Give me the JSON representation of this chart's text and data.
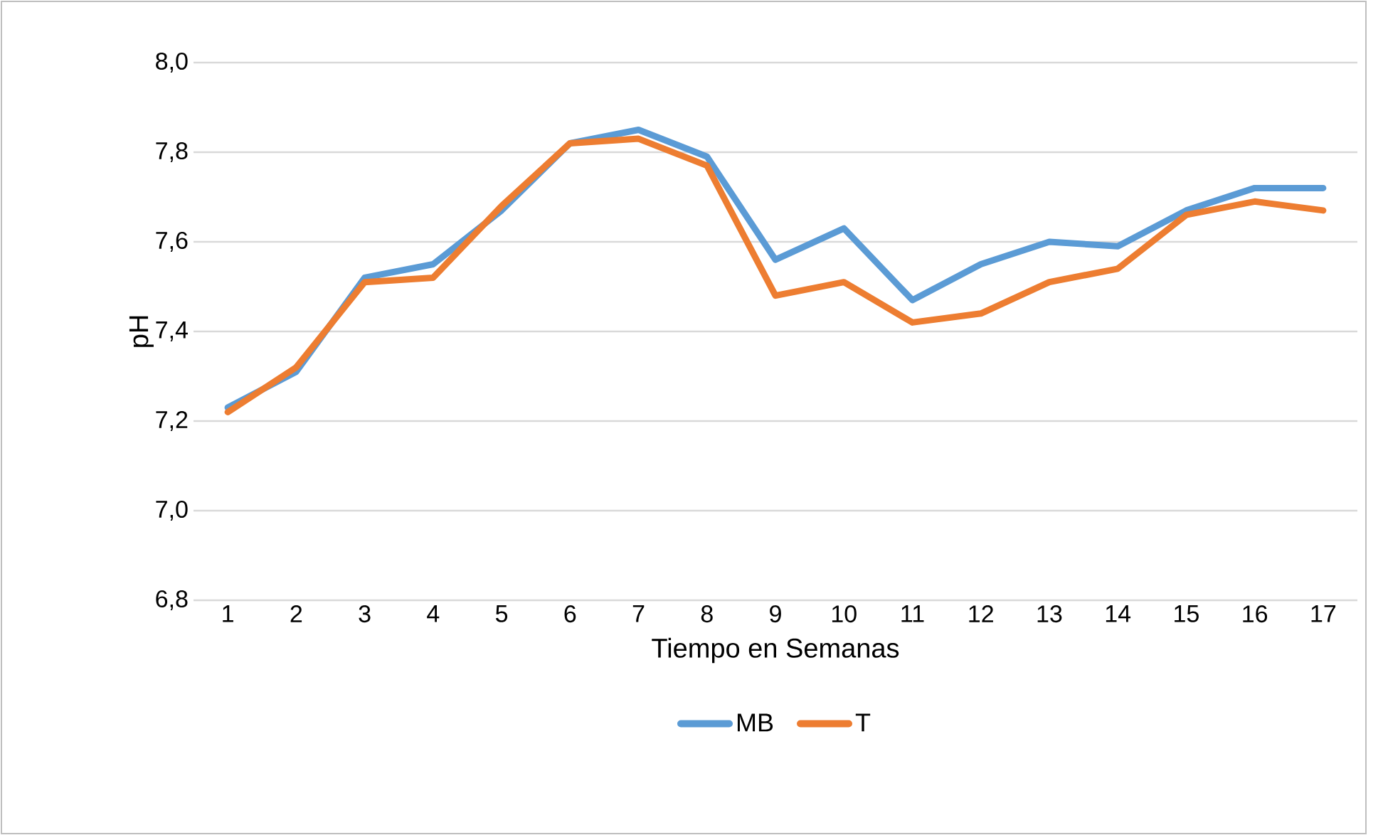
{
  "chart_data": {
    "type": "line",
    "xlabel": "Tiempo en Semanas",
    "ylabel": "pH",
    "categories": [
      "1",
      "2",
      "3",
      "4",
      "5",
      "6",
      "7",
      "8",
      "9",
      "10",
      "11",
      "12",
      "13",
      "14",
      "15",
      "16",
      "17"
    ],
    "series": [
      {
        "name": "MB",
        "color": "#5b9bd5",
        "values": [
          7.23,
          7.31,
          7.52,
          7.55,
          7.67,
          7.82,
          7.85,
          7.79,
          7.56,
          7.63,
          7.47,
          7.55,
          7.6,
          7.59,
          7.67,
          7.72,
          7.72
        ]
      },
      {
        "name": "T",
        "color": "#ed7d31",
        "values": [
          7.22,
          7.32,
          7.51,
          7.52,
          7.68,
          7.82,
          7.83,
          7.77,
          7.48,
          7.51,
          7.42,
          7.44,
          7.51,
          7.54,
          7.66,
          7.69,
          7.67
        ]
      }
    ],
    "ylim": [
      6.8,
      8.0
    ],
    "yticks": [
      {
        "value": 6.8,
        "label": "6,8"
      },
      {
        "value": 7.0,
        "label": "7,0"
      },
      {
        "value": 7.2,
        "label": "7,2"
      },
      {
        "value": 7.4,
        "label": "7,4"
      },
      {
        "value": 7.6,
        "label": "7,6"
      },
      {
        "value": 7.8,
        "label": "7,8"
      },
      {
        "value": 8.0,
        "label": "8,0"
      }
    ],
    "grid": "y",
    "legend": "bottom",
    "marker": "none",
    "line_style": "solid"
  }
}
